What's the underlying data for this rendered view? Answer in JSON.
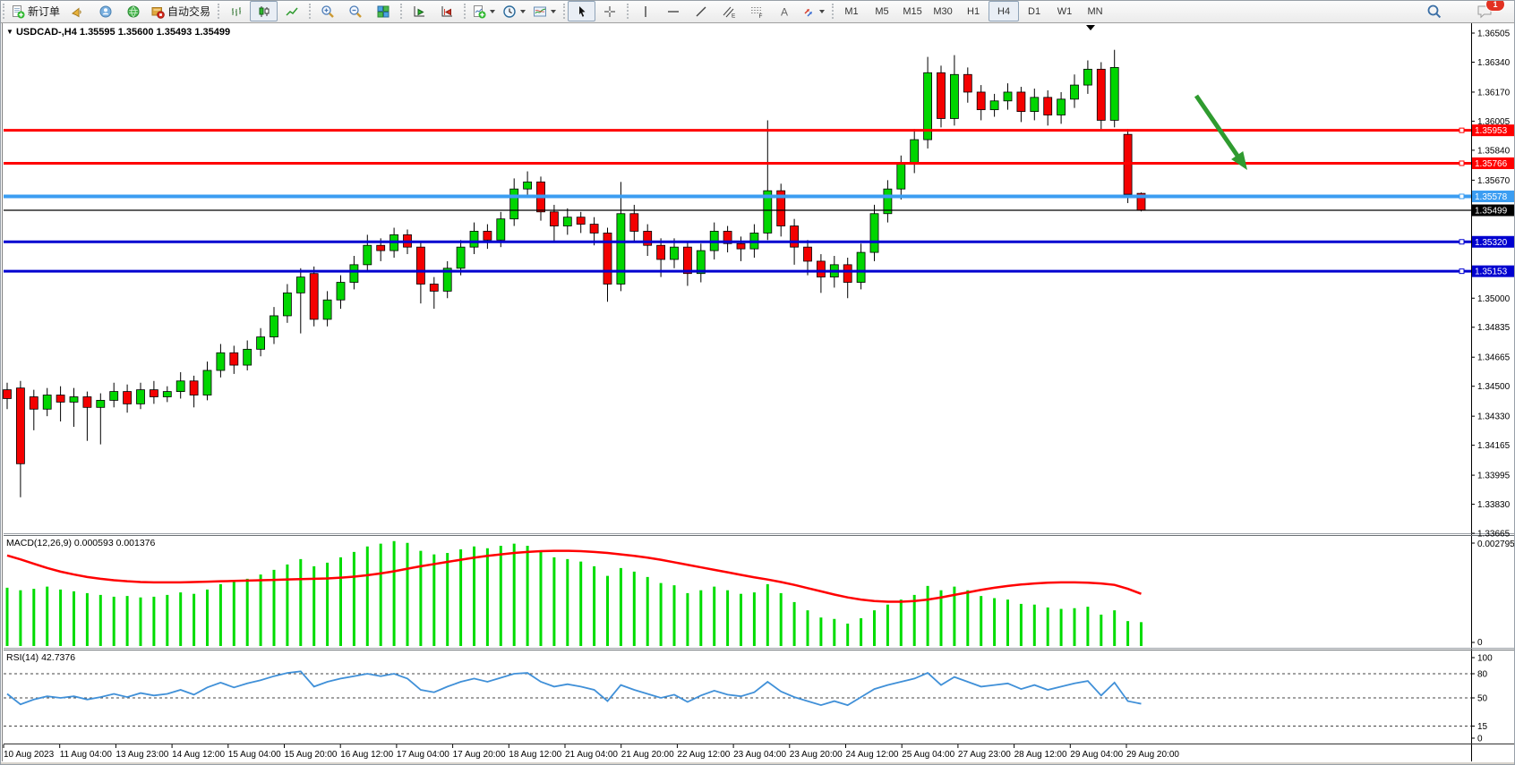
{
  "window": {
    "badge_count": "1"
  },
  "toolbar": {
    "new_order_label": "新订单",
    "autotrading_label": "自动交易",
    "icon_names": [
      "new-order-icon",
      "megaphone-icon",
      "community-icon",
      "market-icon",
      "autotrading-icon",
      "bar-chart-icon",
      "candlestick-chart-icon",
      "line-chart-icon",
      "zoom-in-icon",
      "zoom-out-icon",
      "tile-windows-icon",
      "autoscroll-icon",
      "chart-shift-icon",
      "indicators-icon",
      "periods-icon",
      "templates-icon",
      "cursor-icon",
      "crosshair-icon",
      "vertical-line-icon",
      "horizontal-line-icon",
      "trendline-icon",
      "channel-icon",
      "fibonacci-icon",
      "text-icon",
      "arrows-icon",
      "search-icon",
      "chat-icon"
    ]
  },
  "timeframes": {
    "items": [
      "M1",
      "M5",
      "M15",
      "M30",
      "H1",
      "H4",
      "D1",
      "W1",
      "MN"
    ],
    "active": "H4"
  },
  "chart": {
    "title_marker": "▼",
    "symbol_title": "USDCAD-,H4",
    "ohlc_text": "1.35595 1.35600 1.35493 1.35499"
  },
  "colors": {
    "bull_candle": "#00d600",
    "bear_candle": "#f40000",
    "candle_outline": "#000000",
    "resistance_line": "#ff0000",
    "support_light_blue": "#3b9df2",
    "support_dark_blue": "#0000d0",
    "bid_line": "#000000",
    "macd_histogram": "#00dc00",
    "macd_signal": "#ff0000",
    "rsi_line": "#4090d8",
    "arrow_annotation": "#2f9b2f"
  },
  "chart_data": {
    "type": "candlestick",
    "symbol": "USDCAD",
    "timeframe": "H4",
    "y_axis": {
      "min": 1.33665,
      "max": 1.36505,
      "ticks": [
        1.36505,
        1.3634,
        1.3617,
        1.36005,
        1.3584,
        1.3567,
        1.35,
        1.34835,
        1.34665,
        1.345,
        1.3433,
        1.34165,
        1.33995,
        1.3383,
        1.33665
      ]
    },
    "x_labels": [
      "10 Aug 2023",
      "11 Aug 04:00",
      "13 Aug 23:00",
      "14 Aug 12:00",
      "15 Aug 04:00",
      "15 Aug 20:00",
      "16 Aug 12:00",
      "17 Aug 04:00",
      "17 Aug 20:00",
      "18 Aug 12:00",
      "21 Aug 04:00",
      "21 Aug 20:00",
      "22 Aug 12:00",
      "23 Aug 04:00",
      "23 Aug 20:00",
      "24 Aug 12:00",
      "25 Aug 04:00",
      "27 Aug 23:00",
      "28 Aug 12:00",
      "29 Aug 04:00",
      "29 Aug 20:00"
    ],
    "ohlc": {
      "open": [
        1.3448,
        1.3449,
        1.3444,
        1.3437,
        1.3445,
        1.3441,
        1.3444,
        1.3438,
        1.3442,
        1.3447,
        1.344,
        1.3448,
        1.3444,
        1.3447,
        1.3453,
        1.3445,
        1.3459,
        1.3469,
        1.3462,
        1.3471,
        1.3478,
        1.349,
        1.3503,
        1.3514,
        1.3488,
        1.3499,
        1.3509,
        1.3519,
        1.353,
        1.3527,
        1.3536,
        1.3529,
        1.3508,
        1.3504,
        1.3517,
        1.3529,
        1.3538,
        1.3533,
        1.3545,
        1.3562,
        1.3566,
        1.3549,
        1.3541,
        1.3546,
        1.3542,
        1.3537,
        1.3508,
        1.3548,
        1.3538,
        1.353,
        1.3522,
        1.3529,
        1.3514,
        1.3527,
        1.3538,
        1.3531,
        1.3528,
        1.3537,
        1.3561,
        1.3541,
        1.3529,
        1.3521,
        1.3512,
        1.3519,
        1.3509,
        1.3526,
        1.3548,
        1.3562,
        1.3576,
        1.359,
        1.3628,
        1.3602,
        1.3627,
        1.3617,
        1.3607,
        1.3612,
        1.3617,
        1.3606,
        1.3614,
        1.3604,
        1.3613,
        1.3621,
        1.363,
        1.3601,
        1.3593,
        1.35595
      ],
      "high": [
        1.3452,
        1.3453,
        1.3448,
        1.3449,
        1.345,
        1.3449,
        1.3447,
        1.3446,
        1.3452,
        1.3451,
        1.3452,
        1.3453,
        1.345,
        1.3458,
        1.3456,
        1.3464,
        1.3474,
        1.3473,
        1.3476,
        1.3483,
        1.3495,
        1.3508,
        1.3517,
        1.3518,
        1.3504,
        1.3513,
        1.3524,
        1.3536,
        1.3534,
        1.354,
        1.3539,
        1.3532,
        1.3512,
        1.3521,
        1.3533,
        1.3543,
        1.3542,
        1.3549,
        1.3568,
        1.3572,
        1.3569,
        1.3553,
        1.3551,
        1.3549,
        1.3546,
        1.354,
        1.3566,
        1.3553,
        1.3542,
        1.3534,
        1.3534,
        1.3532,
        1.3531,
        1.3543,
        1.3541,
        1.3535,
        1.3542,
        1.3601,
        1.3565,
        1.3545,
        1.3533,
        1.3525,
        1.3524,
        1.3523,
        1.3531,
        1.3553,
        1.3567,
        1.3581,
        1.3596,
        1.3637,
        1.3632,
        1.3638,
        1.3631,
        1.3621,
        1.3616,
        1.3622,
        1.362,
        1.3619,
        1.3618,
        1.3617,
        1.3627,
        1.3635,
        1.3634,
        1.3641,
        1.3596,
        1.356
      ],
      "low": [
        1.3437,
        1.3387,
        1.3425,
        1.3433,
        1.343,
        1.3427,
        1.3419,
        1.3417,
        1.3438,
        1.3435,
        1.3437,
        1.344,
        1.3441,
        1.3443,
        1.3438,
        1.3442,
        1.3455,
        1.3457,
        1.3459,
        1.3467,
        1.3474,
        1.3486,
        1.348,
        1.3484,
        1.3484,
        1.3494,
        1.3505,
        1.3515,
        1.3521,
        1.3523,
        1.3525,
        1.3497,
        1.3494,
        1.35,
        1.3513,
        1.3525,
        1.3528,
        1.3529,
        1.3541,
        1.3557,
        1.3544,
        1.3532,
        1.3536,
        1.3537,
        1.353,
        1.3498,
        1.3504,
        1.3532,
        1.3524,
        1.3512,
        1.3517,
        1.3507,
        1.3509,
        1.3522,
        1.3526,
        1.3521,
        1.3523,
        1.3533,
        1.3535,
        1.3519,
        1.3513,
        1.3503,
        1.3506,
        1.35,
        1.3505,
        1.3521,
        1.3543,
        1.3556,
        1.3571,
        1.3585,
        1.3597,
        1.3598,
        1.3611,
        1.3601,
        1.3603,
        1.3607,
        1.36,
        1.3601,
        1.3598,
        1.3599,
        1.3608,
        1.3616,
        1.3596,
        1.3597,
        1.3554,
        1.35493
      ],
      "close": [
        1.3443,
        1.3406,
        1.3437,
        1.3445,
        1.3441,
        1.3444,
        1.3438,
        1.3442,
        1.3447,
        1.344,
        1.3448,
        1.3444,
        1.3447,
        1.3453,
        1.3445,
        1.3459,
        1.3469,
        1.3462,
        1.3471,
        1.3478,
        1.349,
        1.3503,
        1.3512,
        1.3488,
        1.3499,
        1.3509,
        1.3519,
        1.353,
        1.3527,
        1.3536,
        1.3529,
        1.3508,
        1.3504,
        1.3517,
        1.3529,
        1.3538,
        1.3533,
        1.3545,
        1.3562,
        1.3566,
        1.3549,
        1.3541,
        1.3546,
        1.3542,
        1.3537,
        1.3508,
        1.3548,
        1.3538,
        1.353,
        1.3522,
        1.3529,
        1.3514,
        1.3527,
        1.3538,
        1.3531,
        1.3528,
        1.3537,
        1.3561,
        1.3541,
        1.3529,
        1.3521,
        1.3512,
        1.3519,
        1.3509,
        1.3526,
        1.3548,
        1.3562,
        1.3576,
        1.359,
        1.3628,
        1.3602,
        1.3627,
        1.3617,
        1.3607,
        1.3612,
        1.3617,
        1.3606,
        1.3614,
        1.3604,
        1.3613,
        1.3621,
        1.363,
        1.3601,
        1.3631,
        1.3559,
        1.35499
      ]
    },
    "hlines": [
      {
        "price": 1.35953,
        "color": "#ff0000",
        "width": 3
      },
      {
        "price": 1.35766,
        "color": "#ff0000",
        "width": 3
      },
      {
        "price": 1.35578,
        "color": "#3b9df2",
        "width": 4
      },
      {
        "price": 1.3532,
        "color": "#0000d0",
        "width": 3
      },
      {
        "price": 1.35153,
        "color": "#0000d0",
        "width": 3
      }
    ],
    "bid_line": {
      "price": 1.35499,
      "color": "#000000"
    },
    "annotations": [
      {
        "type": "arrow",
        "direction": "down-right",
        "color": "#2f9b2f",
        "points_to_price": 1.35766
      },
      {
        "type": "chart-shift-marker",
        "glyph": "▼"
      }
    ],
    "indicators": [
      {
        "name": "MACD",
        "label": "MACD(12,26,9) 0.000593 0.001376",
        "current_values": [
          "0.000593",
          "0.001376"
        ],
        "axis_ticks": [
          "0.002795",
          "0"
        ],
        "axis_max": 0.002795,
        "histogram": [
          0.00155,
          0.00148,
          0.00152,
          0.00158,
          0.0015,
          0.00145,
          0.0014,
          0.00135,
          0.0013,
          0.00132,
          0.00128,
          0.0013,
          0.00135,
          0.00142,
          0.00138,
          0.0015,
          0.00165,
          0.00172,
          0.0018,
          0.00192,
          0.00205,
          0.0022,
          0.00235,
          0.00215,
          0.00225,
          0.0024,
          0.00255,
          0.0027,
          0.00278,
          0.00285,
          0.0028,
          0.00258,
          0.00248,
          0.00252,
          0.00262,
          0.0027,
          0.00265,
          0.00272,
          0.00278,
          0.00272,
          0.00255,
          0.0024,
          0.00235,
          0.00228,
          0.00215,
          0.00188,
          0.0021,
          0.002,
          0.00185,
          0.00168,
          0.00162,
          0.0014,
          0.00148,
          0.00158,
          0.00148,
          0.00138,
          0.00142,
          0.00165,
          0.0014,
          0.00115,
          0.00092,
          0.00072,
          0.00068,
          0.00055,
          0.0007,
          0.00092,
          0.00108,
          0.00122,
          0.00135,
          0.0016,
          0.00148,
          0.00158,
          0.00148,
          0.00132,
          0.00126,
          0.00122,
          0.0011,
          0.00108,
          0.001,
          0.00096,
          0.00098,
          0.00102,
          0.0008,
          0.00092,
          0.00062,
          0.00059
        ],
        "signal": [
          0.00245,
          0.00234,
          0.00222,
          0.0021,
          0.002,
          0.00192,
          0.00185,
          0.0018,
          0.00176,
          0.00173,
          0.00171,
          0.0017,
          0.0017,
          0.0017,
          0.00171,
          0.00172,
          0.00173,
          0.00174,
          0.00175,
          0.00176,
          0.00177,
          0.00178,
          0.00179,
          0.0018,
          0.00181,
          0.00183,
          0.00186,
          0.0019,
          0.00195,
          0.00201,
          0.00208,
          0.00215,
          0.00221,
          0.00227,
          0.00233,
          0.00239,
          0.00244,
          0.00248,
          0.00252,
          0.00255,
          0.00257,
          0.00258,
          0.00258,
          0.00257,
          0.00255,
          0.00252,
          0.00248,
          0.00244,
          0.00239,
          0.00233,
          0.00226,
          0.00219,
          0.00212,
          0.00205,
          0.00198,
          0.00191,
          0.00184,
          0.00178,
          0.00171,
          0.00163,
          0.00154,
          0.00145,
          0.00136,
          0.00128,
          0.00122,
          0.00118,
          0.00116,
          0.00116,
          0.00118,
          0.00122,
          0.00128,
          0.00135,
          0.00142,
          0.00149,
          0.00155,
          0.0016,
          0.00164,
          0.00167,
          0.00169,
          0.0017,
          0.0017,
          0.00169,
          0.00167,
          0.00163,
          0.00152,
          0.00138
        ]
      },
      {
        "name": "RSI",
        "label": "RSI(14) 42.7376",
        "current_value": 42.7376,
        "axis_ticks": [
          100,
          80,
          50,
          15,
          0
        ],
        "levels": [
          80,
          50,
          15
        ],
        "values": [
          55,
          42,
          48,
          52,
          50,
          52,
          48,
          51,
          55,
          51,
          56,
          53,
          55,
          60,
          54,
          63,
          69,
          63,
          68,
          72,
          77,
          81,
          83,
          64,
          70,
          74,
          77,
          80,
          77,
          80,
          74,
          60,
          57,
          64,
          70,
          74,
          70,
          75,
          80,
          81,
          70,
          64,
          67,
          64,
          60,
          46,
          66,
          60,
          55,
          50,
          54,
          45,
          53,
          59,
          54,
          52,
          57,
          70,
          58,
          51,
          46,
          41,
          46,
          41,
          51,
          61,
          66,
          70,
          74,
          81,
          66,
          76,
          70,
          64,
          66,
          68,
          61,
          66,
          60,
          64,
          68,
          71,
          53,
          69,
          46,
          42.7
        ]
      }
    ]
  }
}
